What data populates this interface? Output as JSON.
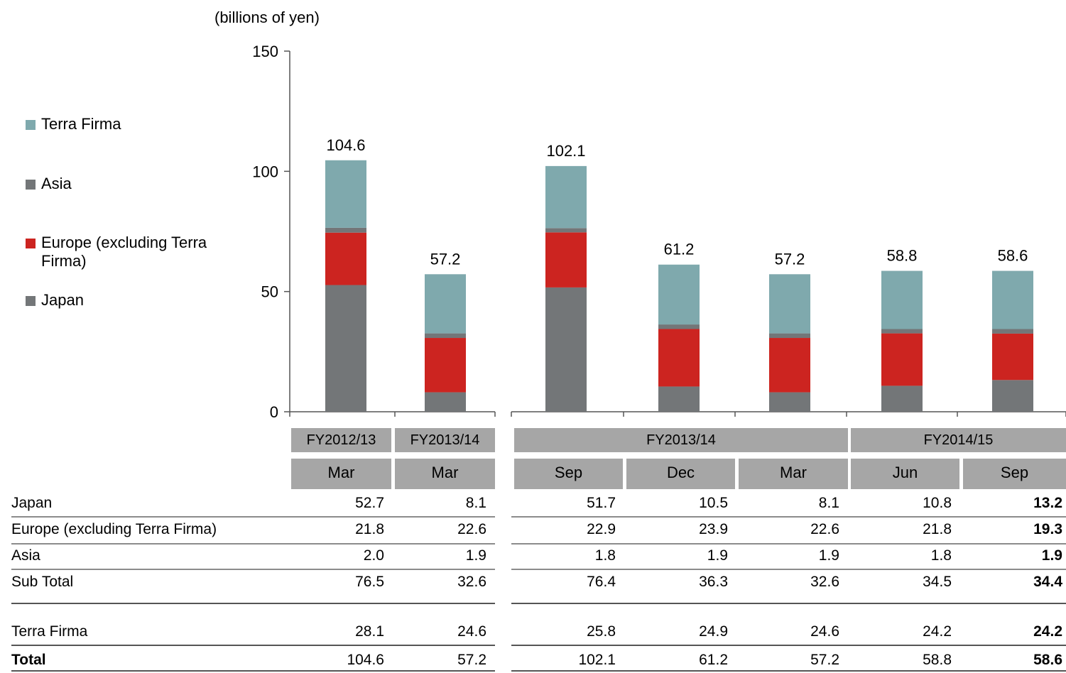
{
  "unit_label": "(billions of yen)",
  "legend": [
    {
      "label": "Terra  Firma",
      "color": "#7fa9ad"
    },
    {
      "label": "Asia",
      "color": "#737678"
    },
    {
      "label": "Europe (excluding Terra Firma)",
      "color": "#cc2420"
    },
    {
      "label": "Japan",
      "color": "#737678"
    }
  ],
  "headers": {
    "groups": [
      "FY2012/13",
      "FY2013/14",
      "FY2013/14",
      "FY2014/15"
    ],
    "months": [
      "Mar",
      "Mar",
      "Sep",
      "Dec",
      "Mar",
      "Jun",
      "Sep"
    ]
  },
  "table": {
    "rows": [
      {
        "label": "Japan",
        "values": [
          "52.7",
          "8.1",
          "51.7",
          "10.5",
          "8.1",
          "10.8",
          "13.2"
        ]
      },
      {
        "label": "Europe (excluding Terra Firma)",
        "values": [
          "21.8",
          "22.6",
          "22.9",
          "23.9",
          "22.6",
          "21.8",
          "19.3"
        ]
      },
      {
        "label": "Asia",
        "values": [
          "2.0",
          "1.9",
          "1.8",
          "1.9",
          "1.9",
          "1.8",
          "1.9"
        ]
      },
      {
        "label": "Sub Total",
        "values": [
          "76.5",
          "32.6",
          "76.4",
          "36.3",
          "32.6",
          "34.5",
          "34.4"
        ]
      },
      {
        "label": "Terra Firma",
        "values": [
          "28.1",
          "24.6",
          "25.8",
          "24.9",
          "24.6",
          "24.2",
          "24.2"
        ]
      },
      {
        "label": "Total",
        "values": [
          "104.6",
          "57.2",
          "102.1",
          "61.2",
          "57.2",
          "58.8",
          "58.6"
        ]
      }
    ]
  },
  "chart_data": {
    "type": "bar",
    "stacked": true,
    "categories": [
      "FY2012/13 Mar",
      "FY2013/14 Mar",
      "FY2013/14 Sep",
      "FY2013/14 Dec",
      "FY2013/14 Mar",
      "FY2014/15 Jun",
      "FY2014/15 Sep"
    ],
    "series": [
      {
        "name": "Japan",
        "color": "#737678",
        "values": [
          52.7,
          8.1,
          51.7,
          10.5,
          8.1,
          10.8,
          13.2
        ]
      },
      {
        "name": "Europe (excluding Terra Firma)",
        "color": "#cc2420",
        "values": [
          21.8,
          22.6,
          22.9,
          23.9,
          22.6,
          21.8,
          19.3
        ]
      },
      {
        "name": "Asia",
        "color": "#737678",
        "values": [
          2.0,
          1.9,
          1.8,
          1.9,
          1.9,
          1.8,
          1.9
        ]
      },
      {
        "name": "Terra  Firma",
        "color": "#7fa9ad",
        "values": [
          28.1,
          24.6,
          25.8,
          24.9,
          24.6,
          24.2,
          24.2
        ]
      }
    ],
    "totals": [
      "104.6",
      "57.2",
      "102.1",
      "61.2",
      "57.2",
      "58.8",
      "58.6"
    ],
    "yticks": [
      "0",
      "50",
      "100",
      "150"
    ],
    "ylim": [
      0,
      150
    ],
    "ylabel": "(billions of yen)",
    "grid": false,
    "legend_position": "left"
  }
}
